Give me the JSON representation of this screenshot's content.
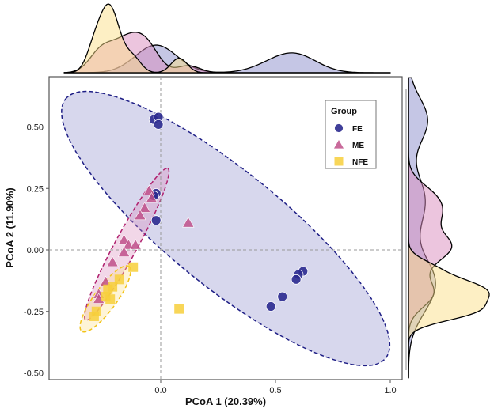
{
  "chart_data": {
    "type": "scatter",
    "xlabel": "PCoA 1 (20.39%)",
    "ylabel": "PCoA 2 (11.90%)",
    "xlim": [
      -0.486,
      1.05
    ],
    "ylim": [
      -0.527,
      0.7
    ],
    "x_ticks": [
      {
        "v": 0,
        "label": "0.0"
      },
      {
        "v": 0.5,
        "label": "0.5"
      },
      {
        "v": 1.0,
        "label": "1.0"
      }
    ],
    "y_ticks": [
      {
        "v": 0.5,
        "label": "0.50"
      },
      {
        "v": 0.25,
        "label": "0.25"
      },
      {
        "v": 0,
        "label": "0.00"
      },
      {
        "v": -0.25,
        "label": "-0.25"
      },
      {
        "v": -0.5,
        "label": "-0.50"
      }
    ],
    "reference_lines": {
      "x": 0,
      "y": 0
    },
    "legend": {
      "title": "Group",
      "placement": "top-right"
    },
    "marginal_density": {
      "top": "x",
      "right": "y"
    },
    "series": [
      {
        "name": "FE",
        "marker": "circle",
        "color": "#2b2a8f",
        "fill": "#8c8dcc",
        "ellipse_line": "#1f1f86",
        "points": [
          [
            -0.03,
            0.53
          ],
          [
            -0.01,
            0.54
          ],
          [
            -0.01,
            0.51
          ],
          [
            -0.02,
            0.23
          ],
          [
            -0.03,
            0.22
          ],
          [
            -0.02,
            0.12
          ],
          [
            0.62,
            -0.087
          ],
          [
            0.6,
            -0.1
          ],
          [
            0.59,
            -0.12
          ],
          [
            0.53,
            -0.19
          ],
          [
            0.48,
            -0.23
          ]
        ],
        "ellipse": {
          "center": [
            0.283,
            0.087
          ],
          "major_end": [
            -0.414,
            0.614
          ],
          "minor_ratio": 0.28
        }
      },
      {
        "name": "ME",
        "marker": "triangle",
        "color": "#c0508a",
        "fill": "#d98bbd",
        "ellipse_line": "#b0206e",
        "points": [
          [
            -0.05,
            0.24
          ],
          [
            -0.04,
            0.21
          ],
          [
            -0.07,
            0.17
          ],
          [
            -0.09,
            0.14
          ],
          [
            0.12,
            0.11
          ],
          [
            -0.16,
            0.04
          ],
          [
            -0.14,
            0.02
          ],
          [
            -0.11,
            0.02
          ],
          [
            -0.16,
            -0.01
          ],
          [
            -0.21,
            -0.05
          ],
          [
            -0.24,
            -0.13
          ],
          [
            -0.27,
            -0.18
          ],
          [
            -0.27,
            -0.2
          ]
        ],
        "ellipse": {
          "center": [
            -0.148,
            0.023
          ],
          "major_end": [
            0.031,
            0.331
          ],
          "minor_ratio": 0.13
        }
      },
      {
        "name": "NFE",
        "marker": "square",
        "color": "#f7cf3b",
        "fill": "#fbe08a",
        "ellipse_line": "#f2c318",
        "points": [
          [
            -0.12,
            -0.07
          ],
          [
            -0.18,
            -0.12
          ],
          [
            -0.21,
            -0.15
          ],
          [
            -0.23,
            -0.16
          ],
          [
            -0.22,
            -0.2
          ],
          [
            -0.24,
            -0.19
          ],
          [
            -0.28,
            -0.25
          ],
          [
            -0.29,
            -0.27
          ],
          [
            0.08,
            -0.24
          ]
        ],
        "ellipse": {
          "center": [
            -0.241,
            -0.199
          ],
          "major_end": [
            -0.138,
            -0.067
          ],
          "minor_ratio": 0.28
        }
      }
    ]
  }
}
